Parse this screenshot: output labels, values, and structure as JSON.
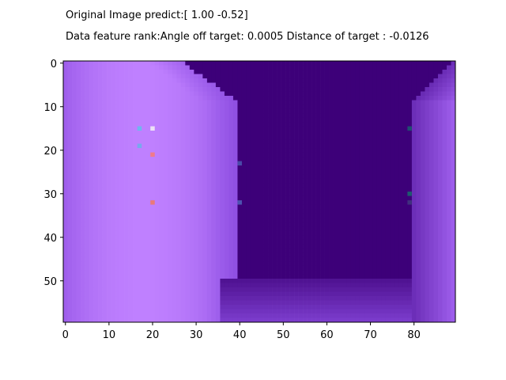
{
  "title_lines": [
    "Original Image predict:[ 1.00 -0.52]",
    "Data feature rank:Angle off target: 0.0005 Distance of target : -0.0126"
  ],
  "chart_data": {
    "type": "heatmap",
    "image_width": 90,
    "image_height": 60,
    "xlim": [
      -0.5,
      89.5
    ],
    "ylim": [
      59.5,
      -0.5
    ],
    "x_ticks": [
      0,
      10,
      20,
      30,
      40,
      50,
      60,
      70,
      80
    ],
    "y_ticks": [
      0,
      10,
      20,
      30,
      40,
      50
    ],
    "colors": {
      "dark": "#3d0079",
      "light": "#bf80ff",
      "mid": "#8a4ae0"
    },
    "highlight_pixels": [
      {
        "x": 17,
        "y": 15,
        "color": "#6fb6ef"
      },
      {
        "x": 20,
        "y": 15,
        "color": "#ece0f5"
      },
      {
        "x": 17,
        "y": 19,
        "color": "#78a8ee"
      },
      {
        "x": 20,
        "y": 21,
        "color": "#f07a8a"
      },
      {
        "x": 20,
        "y": 32,
        "color": "#e9797a"
      },
      {
        "x": 40,
        "y": 23,
        "color": "#4a4aa8"
      },
      {
        "x": 40,
        "y": 32,
        "color": "#4d52b0"
      },
      {
        "x": 79,
        "y": 15,
        "color": "#1f4f70"
      },
      {
        "x": 79,
        "y": 30,
        "color": "#1e5a6e"
      },
      {
        "x": 79,
        "y": 32,
        "color": "#40307e"
      }
    ]
  }
}
